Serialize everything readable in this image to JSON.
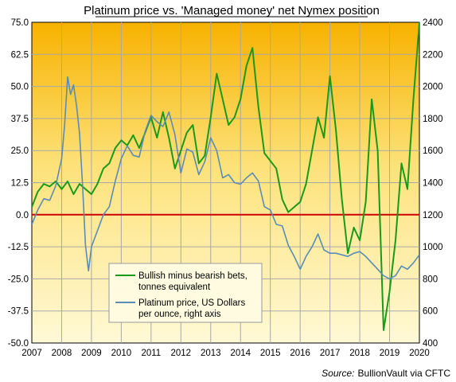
{
  "chart_data": {
    "type": "line",
    "title": "Platinum price vs. 'Managed money' net Nymex position",
    "source_label": "Source:",
    "source_text": "BullionVault via CFTC",
    "x_ticks": [
      "2007",
      "2008",
      "2009",
      "2010",
      "2011",
      "2012",
      "2013",
      "2014",
      "2015",
      "2016",
      "2017",
      "2018",
      "2019",
      "2020"
    ],
    "xlim": [
      2007,
      2020
    ],
    "left_axis": {
      "ylim": [
        -50,
        75
      ],
      "ticks": [
        "75.0",
        "62.5",
        "50.0",
        "37.5",
        "25.0",
        "12.5",
        "0.0",
        "-12.5",
        "-25.0",
        "-37.5",
        "-50.0"
      ]
    },
    "right_axis": {
      "ylim": [
        400,
        2400
      ],
      "ticks": [
        "2400",
        "2200",
        "2000",
        "1800",
        "1600",
        "1400",
        "1200",
        "1000",
        "800",
        "600",
        "400"
      ]
    },
    "zero_line_color": "#cc0000",
    "series": [
      {
        "name": "Bullish minus bearish bets, tonnes equivalent",
        "legend_lines": [
          "Bullish minus bearish bets,",
          "tonnes equivalent"
        ],
        "axis": "left",
        "color": "#1a9a1a",
        "x": [
          2007.0,
          2007.2,
          2007.4,
          2007.6,
          2007.8,
          2008.0,
          2008.2,
          2008.4,
          2008.6,
          2008.8,
          2009.0,
          2009.2,
          2009.4,
          2009.6,
          2009.8,
          2010.0,
          2010.2,
          2010.4,
          2010.6,
          2010.8,
          2011.0,
          2011.2,
          2011.4,
          2011.6,
          2011.8,
          2012.0,
          2012.2,
          2012.4,
          2012.6,
          2012.8,
          2013.0,
          2013.2,
          2013.4,
          2013.6,
          2013.8,
          2014.0,
          2014.2,
          2014.4,
          2014.6,
          2014.8,
          2015.0,
          2015.2,
          2015.4,
          2015.6,
          2015.8,
          2016.0,
          2016.2,
          2016.4,
          2016.6,
          2016.8,
          2017.0,
          2017.2,
          2017.4,
          2017.6,
          2017.8,
          2018.0,
          2018.2,
          2018.4,
          2018.6,
          2018.8,
          2019.0,
          2019.2,
          2019.4,
          2019.6,
          2019.8,
          2020.0
        ],
        "y": [
          3,
          9,
          12,
          11,
          13,
          10,
          13,
          8,
          12,
          10,
          8,
          12,
          18,
          20,
          26,
          29,
          27,
          31,
          26,
          32,
          38,
          30,
          40,
          30,
          18,
          25,
          32,
          35,
          20,
          23,
          38,
          55,
          45,
          35,
          38,
          45,
          58,
          65,
          42,
          24,
          21,
          18,
          6,
          1,
          3,
          5,
          12,
          25,
          38,
          30,
          54,
          33,
          6,
          -15,
          -5,
          -10,
          5,
          45,
          25,
          -45,
          -30,
          -10,
          20,
          10,
          45,
          75
        ]
      },
      {
        "name": "Platinum price, US Dollars per ounce, right axis",
        "legend_lines": [
          "Platinum price, US Dollars",
          "per ounce, right axis"
        ],
        "axis": "right",
        "color": "#5b8cb5",
        "x": [
          2007.0,
          2007.2,
          2007.4,
          2007.6,
          2007.8,
          2008.0,
          2008.1,
          2008.2,
          2008.3,
          2008.4,
          2008.5,
          2008.6,
          2008.7,
          2008.8,
          2008.9,
          2009.0,
          2009.2,
          2009.4,
          2009.6,
          2009.8,
          2010.0,
          2010.2,
          2010.4,
          2010.6,
          2010.8,
          2011.0,
          2011.2,
          2011.4,
          2011.6,
          2011.8,
          2012.0,
          2012.2,
          2012.4,
          2012.6,
          2012.8,
          2013.0,
          2013.2,
          2013.4,
          2013.6,
          2013.8,
          2014.0,
          2014.2,
          2014.4,
          2014.6,
          2014.8,
          2015.0,
          2015.2,
          2015.4,
          2015.6,
          2015.8,
          2016.0,
          2016.2,
          2016.4,
          2016.6,
          2016.8,
          2017.0,
          2017.2,
          2017.4,
          2017.6,
          2017.8,
          2018.0,
          2018.2,
          2018.4,
          2018.6,
          2018.8,
          2019.0,
          2019.2,
          2019.4,
          2019.6,
          2019.8,
          2020.0
        ],
        "y": [
          1140,
          1230,
          1300,
          1290,
          1380,
          1550,
          1760,
          2060,
          1950,
          2010,
          1880,
          1710,
          1390,
          1010,
          850,
          1000,
          1100,
          1200,
          1250,
          1410,
          1550,
          1630,
          1570,
          1560,
          1720,
          1820,
          1780,
          1750,
          1840,
          1700,
          1460,
          1610,
          1590,
          1450,
          1530,
          1680,
          1600,
          1430,
          1450,
          1400,
          1390,
          1430,
          1460,
          1410,
          1250,
          1230,
          1140,
          1130,
          1010,
          940,
          860,
          940,
          1000,
          1080,
          980,
          960,
          960,
          950,
          940,
          960,
          970,
          940,
          900,
          860,
          820,
          800,
          820,
          880,
          860,
          900,
          950
        ]
      }
    ]
  }
}
